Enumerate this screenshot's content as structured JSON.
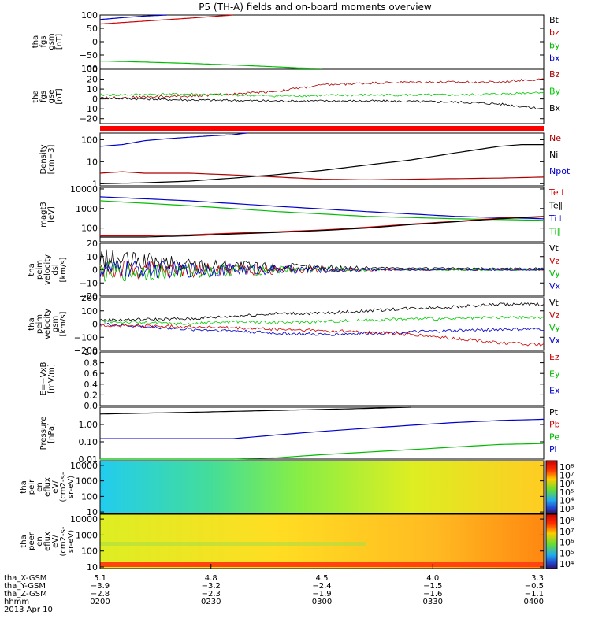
{
  "title": "P5 (TH-A) fields and on-board moments overview",
  "chart_data": {
    "type": "line",
    "title": "P5 (TH-A) fields and on-board moments overview",
    "xlim": [
      "0200",
      "0400"
    ],
    "panels": [
      {
        "id": "fgs_gsm",
        "ylabel": [
          "tha",
          "fgs",
          "gsm",
          "[nT]"
        ],
        "ylim": [
          -100,
          100
        ],
        "ticks": [
          "100",
          "50",
          "0",
          "−50",
          "−100"
        ],
        "tick_values": [
          100,
          50,
          0,
          -50,
          -100
        ],
        "legend": [
          {
            "label": "Bt",
            "color": "#000000"
          },
          {
            "label": "bz",
            "color": "#cc0000"
          },
          {
            "label": "by",
            "color": "#00bb00"
          },
          {
            "label": "bx",
            "color": "#0000cc"
          }
        ],
        "series": [
          {
            "name": "bz",
            "color": "#cc0000",
            "x": [
              0,
              0.1,
              0.2,
              0.3
            ],
            "y": [
              66,
              77,
              88,
              100
            ]
          },
          {
            "name": "bx",
            "color": "#0000cc",
            "x": [
              0,
              0.05,
              0.1,
              0.15
            ],
            "y": [
              83,
              90,
              96,
              100
            ]
          },
          {
            "name": "by",
            "color": "#00bb00",
            "x": [
              0,
              0.1,
              0.2,
              0.3,
              0.4,
              0.45,
              0.5
            ],
            "y": [
              -72,
              -76,
              -81,
              -87,
              -94,
              -98,
              -100
            ]
          }
        ]
      },
      {
        "id": "fgs_gse",
        "ylabel": [
          "tha",
          "fgs",
          "gse",
          "[nT]"
        ],
        "ylim": [
          -25,
          30
        ],
        "ticks": [
          "30",
          "20",
          "10",
          "0",
          "−10",
          "−20"
        ],
        "tick_values": [
          30,
          20,
          10,
          0,
          -10,
          -20
        ],
        "legend": [
          {
            "label": "Bz",
            "color": "#aa0000"
          },
          {
            "label": "By",
            "color": "#00cc00"
          },
          {
            "label": "Bx",
            "color": "#000000"
          }
        ],
        "series": [
          {
            "name": "Bz",
            "color": "#aa0000",
            "x": [
              0,
              0.1,
              0.2,
              0.3,
              0.4,
              0.5,
              0.6,
              0.7,
              0.8,
              0.9,
              0.95,
              1.0
            ],
            "y": [
              1,
              2,
              3,
              5,
              8,
              14,
              16,
              17,
              17,
              17,
              19,
              20
            ]
          },
          {
            "name": "By",
            "color": "#00cc00",
            "x": [
              0,
              0.2,
              0.4,
              0.6,
              0.8,
              0.9,
              1.0
            ],
            "y": [
              4,
              5,
              3,
              4,
              4,
              5,
              7
            ]
          },
          {
            "name": "Bx",
            "color": "#000000",
            "x": [
              0,
              0.2,
              0.4,
              0.6,
              0.8,
              0.9,
              1.0
            ],
            "y": [
              1,
              -1,
              -2,
              -2,
              -3,
              -5,
              -10
            ]
          }
        ]
      },
      {
        "id": "density",
        "ylabel": [
          "Density",
          "[cm−3]"
        ],
        "ylim": [
          0.8,
          200
        ],
        "log": true,
        "ticks": [
          "100",
          "10",
          "1"
        ],
        "tick_values": [
          100,
          10,
          1
        ],
        "legend": [
          {
            "label": "Ne",
            "color": "#aa0000"
          },
          {
            "label": "Ni",
            "color": "#000000"
          },
          {
            "label": "Npot",
            "color": "#0000cc"
          }
        ],
        "series": [
          {
            "name": "Ni",
            "color": "#000000",
            "x": [
              0,
              0.1,
              0.2,
              0.3,
              0.4,
              0.5,
              0.6,
              0.7,
              0.8,
              0.9,
              0.95,
              1.0
            ],
            "y": [
              1,
              1.1,
              1.3,
              1.8,
              2.6,
              4,
              7,
              12,
              25,
              50,
              60,
              60
            ]
          },
          {
            "name": "Ne",
            "color": "#aa0000",
            "x": [
              0,
              0.05,
              0.1,
              0.2,
              0.3,
              0.4,
              0.5,
              0.6,
              0.7,
              0.8,
              0.9,
              1.0
            ],
            "y": [
              3,
              3.5,
              3,
              3,
              2.5,
              2,
              1.6,
              1.5,
              1.6,
              1.7,
              1.8,
              2
            ]
          },
          {
            "name": "Npot",
            "color": "#0000cc",
            "x": [
              0,
              0.05,
              0.1,
              0.15,
              0.2,
              0.25,
              0.3,
              0.33
            ],
            "y": [
              50,
              60,
              90,
              110,
              130,
              150,
              170,
              200
            ]
          }
        ]
      },
      {
        "id": "temperature",
        "ylabel": [
          "magt3",
          "[eV]"
        ],
        "ylim": [
          20,
          12000
        ],
        "log": true,
        "ticks": [
          "10000",
          "1000",
          "100"
        ],
        "tick_values": [
          10000,
          1000,
          100
        ],
        "legend": [
          {
            "label": "Te⊥",
            "color": "#cc0000"
          },
          {
            "label": "Te∥",
            "color": "#000000"
          },
          {
            "label": "Ti⊥",
            "color": "#0000cc"
          },
          {
            "label": "Ti∥",
            "color": "#00bb00"
          }
        ],
        "series": [
          {
            "name": "Ti⊥",
            "color": "#0000cc",
            "x": [
              0,
              0.2,
              0.4,
              0.6,
              0.8,
              1.0
            ],
            "y": [
              4000,
              2500,
              1300,
              700,
              400,
              300
            ]
          },
          {
            "name": "Ti∥",
            "color": "#00bb00",
            "x": [
              0,
              0.2,
              0.4,
              0.6,
              0.8,
              1.0
            ],
            "y": [
              2500,
              1400,
              700,
              400,
              300,
              250
            ]
          },
          {
            "name": "Te⊥",
            "color": "#cc0000",
            "x": [
              0,
              0.1,
              0.2,
              0.3,
              0.4,
              0.5,
              0.6,
              0.7,
              0.8,
              0.9,
              1.0
            ],
            "y": [
              40,
              40,
              45,
              55,
              65,
              80,
              110,
              160,
              220,
              320,
              400
            ]
          },
          {
            "name": "Te∥",
            "color": "#000000",
            "x": [
              0,
              0.1,
              0.2,
              0.3,
              0.4,
              0.5,
              0.6,
              0.7,
              0.8,
              0.9,
              1.0
            ],
            "y": [
              35,
              35,
              40,
              50,
              60,
              75,
              100,
              150,
              210,
              300,
              380
            ]
          }
        ]
      },
      {
        "id": "peim_velocity_dsl",
        "ylabel": [
          "tha",
          "peim",
          "velocity",
          "dsl",
          "[km/s]"
        ],
        "ylim": [
          -20,
          20
        ],
        "ticks": [
          "20",
          "10",
          "0",
          "−10",
          "−20"
        ],
        "tick_values": [
          20,
          10,
          0,
          -10,
          -20
        ],
        "legend": [
          {
            "label": "Vt",
            "color": "#000000"
          },
          {
            "label": "Vz",
            "color": "#cc0000"
          },
          {
            "label": "Vy",
            "color": "#00bb00"
          },
          {
            "label": "Vx",
            "color": "#0000cc"
          }
        ],
        "series": [
          {
            "name": "Vt",
            "color": "#000000",
            "x": [
              0,
              0.1,
              0.2,
              0.3,
              0.4,
              0.6,
              0.8,
              1.0
            ],
            "y": [
              8,
              6,
              4,
              3,
              2,
              1.5,
              1,
              1
            ]
          },
          {
            "name": "Vz",
            "color": "#cc0000",
            "x": [
              0,
              0.2,
              0.4,
              0.6,
              0.8,
              1.0
            ],
            "y": [
              0,
              0,
              0,
              0,
              0,
              0
            ]
          },
          {
            "name": "Vy",
            "color": "#00bb00",
            "x": [
              0,
              0.2,
              0.4,
              0.6,
              0.8,
              1.0
            ],
            "y": [
              -2,
              -1,
              0,
              0,
              0,
              0
            ]
          },
          {
            "name": "Vx",
            "color": "#0000cc",
            "x": [
              0,
              0.2,
              0.4,
              0.6,
              0.8,
              1.0
            ],
            "y": [
              0,
              0,
              0,
              0,
              0,
              0
            ]
          }
        ]
      },
      {
        "id": "peim_velocity_gsm",
        "ylabel": [
          "tha",
          "peim",
          "velocity",
          "gsm",
          "[km/s]"
        ],
        "ylim": [
          -200,
          200
        ],
        "ticks": [
          "200",
          "100",
          "0",
          "−100",
          "−200"
        ],
        "tick_values": [
          200,
          100,
          0,
          -100,
          -200
        ],
        "legend": [
          {
            "label": "Vt",
            "color": "#000000"
          },
          {
            "label": "Vz",
            "color": "#cc0000"
          },
          {
            "label": "Vy",
            "color": "#00bb00"
          },
          {
            "label": "Vx",
            "color": "#0000cc"
          }
        ],
        "series": [
          {
            "name": "Vt",
            "color": "#000000",
            "x": [
              0,
              0.1,
              0.2,
              0.3,
              0.4,
              0.5,
              0.6,
              0.7,
              0.8,
              0.9,
              1.0
            ],
            "y": [
              30,
              35,
              40,
              60,
              80,
              80,
              100,
              120,
              130,
              150,
              150
            ]
          },
          {
            "name": "Vy",
            "color": "#00cc00",
            "x": [
              0,
              0.1,
              0.2,
              0.3,
              0.4,
              0.5,
              0.6,
              0.7,
              0.8,
              0.9,
              1.0
            ],
            "y": [
              20,
              10,
              0,
              20,
              10,
              20,
              30,
              40,
              40,
              50,
              50
            ]
          },
          {
            "name": "Vx",
            "color": "#0000cc",
            "x": [
              0,
              0.1,
              0.2,
              0.3,
              0.4,
              0.5,
              0.6,
              0.7,
              0.8,
              0.9,
              1.0
            ],
            "y": [
              0,
              -20,
              -40,
              -50,
              -70,
              -80,
              -70,
              -60,
              -50,
              -40,
              -40
            ]
          },
          {
            "name": "Vz",
            "color": "#cc0000",
            "x": [
              0,
              0.1,
              0.2,
              0.3,
              0.4,
              0.5,
              0.6,
              0.7,
              0.8,
              0.9,
              1.0
            ],
            "y": [
              -10,
              -15,
              -20,
              -30,
              -40,
              -50,
              -60,
              -80,
              -110,
              -140,
              -160
            ]
          }
        ]
      },
      {
        "id": "efield",
        "ylabel": [
          "E=−VxB",
          "[mV/m]"
        ],
        "ylim": [
          0,
          1
        ],
        "ticks": [
          "1.0",
          "0.8",
          "0.6",
          "0.4",
          "0.2",
          "0.0"
        ],
        "tick_values": [
          1,
          0.8,
          0.6,
          0.4,
          0.2,
          0
        ],
        "legend": [
          {
            "label": "Ez",
            "color": "#cc0000"
          },
          {
            "label": "Ey",
            "color": "#00bb00"
          },
          {
            "label": "Ex",
            "color": "#0000cc"
          }
        ],
        "series": []
      },
      {
        "id": "pressure",
        "ylabel": [
          "Pressure",
          "[nPa]"
        ],
        "ylim": [
          0.01,
          10
        ],
        "log": true,
        "ticks": [
          "1.00",
          "0.10",
          "0.01"
        ],
        "tick_values": [
          1,
          0.1,
          0.01
        ],
        "legend": [
          {
            "label": "Pt",
            "color": "#000000"
          },
          {
            "label": "Pb",
            "color": "#cc0000"
          },
          {
            "label": "Pe",
            "color": "#00bb00"
          },
          {
            "label": "Pi",
            "color": "#0000cc"
          }
        ],
        "series": [
          {
            "name": "Pt",
            "color": "#000000",
            "x": [
              0,
              0.2,
              0.4,
              0.6,
              0.7
            ],
            "y": [
              4,
              5,
              6.5,
              8.5,
              10
            ]
          },
          {
            "name": "Pi",
            "color": "#0000cc",
            "x": [
              0,
              0.2,
              0.3,
              0.4,
              0.5,
              0.6,
              0.7,
              0.8,
              0.9,
              1.0
            ],
            "y": [
              0.15,
              0.15,
              0.15,
              0.25,
              0.4,
              0.6,
              0.9,
              1.3,
              1.7,
              2
            ]
          },
          {
            "name": "Pe",
            "color": "#00bb00",
            "x": [
              0,
              0.3,
              0.4,
              0.5,
              0.6,
              0.7,
              0.8,
              0.9,
              1.0
            ],
            "y": [
              0.01,
              0.01,
              0.012,
              0.018,
              0.025,
              0.035,
              0.05,
              0.07,
              0.08
            ]
          }
        ]
      },
      {
        "id": "peir_spectrogram",
        "type": "heatmap",
        "ylabel": [
          "tha",
          "peir",
          "en",
          "eflux",
          "eV/",
          "(cm2-s-",
          "sr-eV)"
        ],
        "ticks": [
          "10000",
          "1000",
          "100",
          "10"
        ],
        "tick_values": [
          10000,
          1000,
          100,
          10
        ],
        "colorbar_ticks": [
          "10⁸",
          "10⁷",
          "10⁶",
          "10⁵",
          "10⁴",
          "10³"
        ]
      },
      {
        "id": "peer_spectrogram",
        "type": "heatmap",
        "ylabel": [
          "tha",
          "peer",
          "en",
          "eflux",
          "eV/",
          "(cm2-s-",
          "sr-eV)"
        ],
        "ticks": [
          "10000",
          "1000",
          "100",
          "10"
        ],
        "tick_values": [
          10000,
          1000,
          100,
          10
        ],
        "colorbar_ticks": [
          "10⁸",
          "10⁷",
          "10⁶",
          "10⁵",
          "10⁴"
        ]
      }
    ],
    "x_axis": {
      "labels": [
        "tha_X-GSM",
        "tha_Y-GSM",
        "tha_Z-GSM",
        "hhmm",
        "2013 Apr 10"
      ],
      "rows": [
        [
          "5.1",
          "4.8",
          "4.5",
          "4.0",
          "3.3"
        ],
        [
          "−3.9",
          "−3.2",
          "−2.4",
          "−1.5",
          "−0.5"
        ],
        [
          "−2.8",
          "−2.3",
          "−1.9",
          "−1.6",
          "−1.1"
        ],
        [
          "0200",
          "0230",
          "0300",
          "0330",
          "0400"
        ]
      ]
    }
  }
}
